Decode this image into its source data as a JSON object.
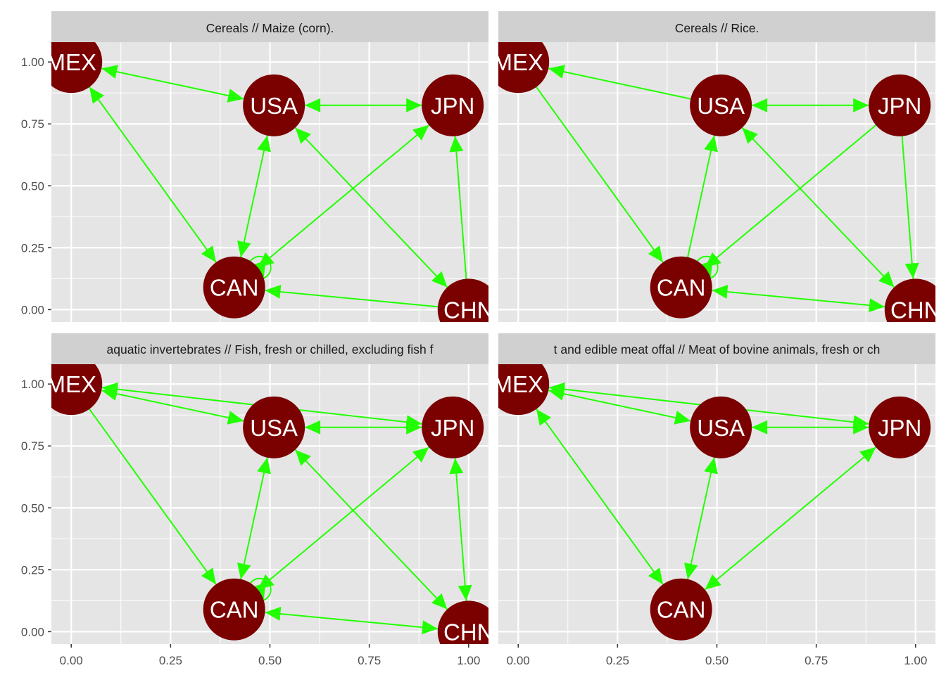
{
  "colors": {
    "panel_bg": "#e5e5e5",
    "strip_bg": "#d0d0d0",
    "grid": "#ffffff",
    "edge": "#22ff00",
    "node": "#7b0000",
    "node_text": "#ffffff",
    "axis_text": "#4d4d4d"
  },
  "chart_data": {
    "type": "network",
    "facet_layout": "2x2",
    "grid": true,
    "xlim": [
      -0.05,
      1.05
    ],
    "ylim": [
      -0.05,
      1.08
    ],
    "x_ticks": [
      "0.00",
      "0.25",
      "0.50",
      "0.75",
      "1.00"
    ],
    "y_ticks": [
      "0.00",
      "0.25",
      "0.50",
      "0.75",
      "1.00"
    ],
    "node_coords": {
      "MEX": [
        0.0,
        1.0
      ],
      "USA": [
        0.51,
        0.825
      ],
      "JPN": [
        0.96,
        0.825
      ],
      "CAN": [
        0.41,
        0.09
      ],
      "CHN": [
        1.0,
        0.0
      ]
    },
    "panels": [
      {
        "strip": "Cereals // Maize (corn).",
        "nodes": [
          "MEX",
          "USA",
          "JPN",
          "CAN",
          "CHN"
        ],
        "edges": [
          {
            "from": "MEX",
            "to": "USA",
            "both": true
          },
          {
            "from": "MEX",
            "to": "CAN",
            "both": true
          },
          {
            "from": "USA",
            "to": "JPN",
            "both": true
          },
          {
            "from": "USA",
            "to": "CAN",
            "both": true
          },
          {
            "from": "USA",
            "to": "CHN",
            "both": true
          },
          {
            "from": "JPN",
            "to": "CAN",
            "both": true
          },
          {
            "from": "CHN",
            "to": "JPN",
            "both": false
          },
          {
            "from": "CHN",
            "to": "CAN",
            "both": false
          }
        ],
        "self_loops": [
          "CAN"
        ]
      },
      {
        "strip": "Cereals // Rice.",
        "nodes": [
          "MEX",
          "USA",
          "JPN",
          "CAN",
          "CHN"
        ],
        "edges": [
          {
            "from": "USA",
            "to": "MEX",
            "both": false
          },
          {
            "from": "MEX",
            "to": "CAN",
            "both": false
          },
          {
            "from": "USA",
            "to": "JPN",
            "both": true
          },
          {
            "from": "CAN",
            "to": "USA",
            "both": false
          },
          {
            "from": "USA",
            "to": "CHN",
            "both": true
          },
          {
            "from": "JPN",
            "to": "CAN",
            "both": false
          },
          {
            "from": "JPN",
            "to": "CHN",
            "both": false
          },
          {
            "from": "CAN",
            "to": "CHN",
            "both": true
          }
        ],
        "self_loops": [
          "CAN"
        ]
      },
      {
        "strip": "aquatic invertebrates // Fish, fresh or chilled, excluding fish f",
        "nodes": [
          "MEX",
          "USA",
          "JPN",
          "CAN",
          "CHN"
        ],
        "edges": [
          {
            "from": "MEX",
            "to": "USA",
            "both": true
          },
          {
            "from": "MEX",
            "to": "JPN",
            "both": true
          },
          {
            "from": "MEX",
            "to": "CAN",
            "both": false
          },
          {
            "from": "USA",
            "to": "JPN",
            "both": true
          },
          {
            "from": "USA",
            "to": "CAN",
            "both": true
          },
          {
            "from": "USA",
            "to": "CHN",
            "both": true
          },
          {
            "from": "JPN",
            "to": "CAN",
            "both": true
          },
          {
            "from": "JPN",
            "to": "CHN",
            "both": true
          },
          {
            "from": "CAN",
            "to": "CHN",
            "both": true
          }
        ],
        "self_loops": [
          "CAN"
        ]
      },
      {
        "strip": "t and edible meat offal // Meat of bovine animals, fresh or ch",
        "nodes": [
          "MEX",
          "USA",
          "JPN",
          "CAN"
        ],
        "edges": [
          {
            "from": "MEX",
            "to": "USA",
            "both": true
          },
          {
            "from": "MEX",
            "to": "JPN",
            "both": true
          },
          {
            "from": "MEX",
            "to": "CAN",
            "both": true
          },
          {
            "from": "USA",
            "to": "JPN",
            "both": true
          },
          {
            "from": "USA",
            "to": "CAN",
            "both": true
          },
          {
            "from": "JPN",
            "to": "CAN",
            "both": true
          }
        ],
        "self_loops": []
      }
    ]
  }
}
